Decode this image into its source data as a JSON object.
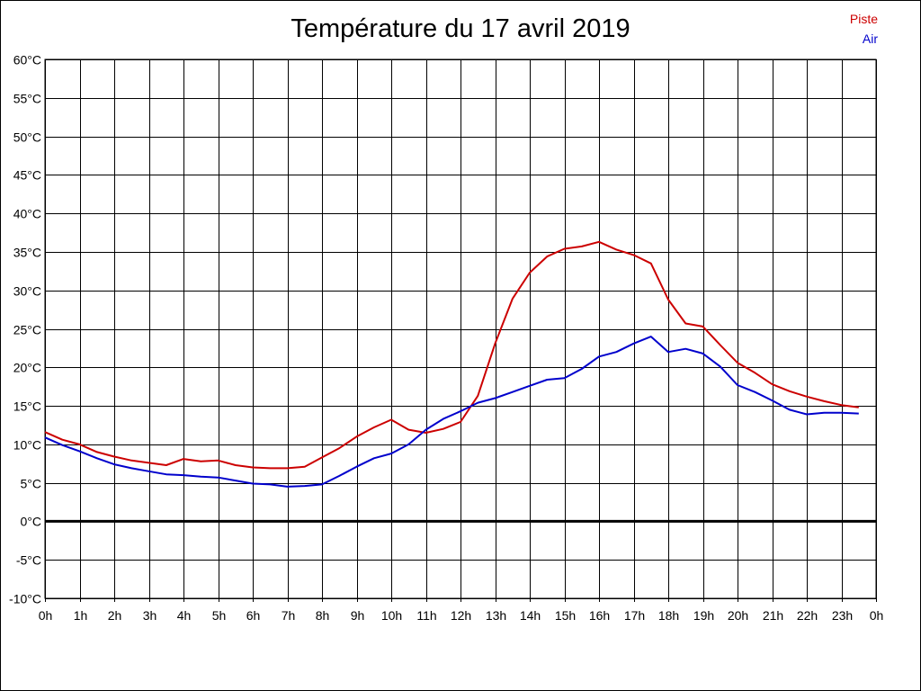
{
  "chart_data": {
    "type": "line",
    "title": "Température du 17 avril 2019",
    "xlabel": "",
    "ylabel": "",
    "ylim": [
      -10,
      60
    ],
    "xlim": [
      0,
      24
    ],
    "grid": true,
    "legend_position": "top-right",
    "x_tick_labels": [
      "0h",
      "1h",
      "2h",
      "3h",
      "4h",
      "5h",
      "6h",
      "7h",
      "8h",
      "9h",
      "10h",
      "11h",
      "12h",
      "13h",
      "14h",
      "15h",
      "16h",
      "17h",
      "18h",
      "19h",
      "20h",
      "21h",
      "22h",
      "23h",
      "0h"
    ],
    "y_tick_labels": [
      "-10°C",
      "-5°C",
      "0°C",
      "5°C",
      "10°C",
      "15°C",
      "20°C",
      "25°C",
      "30°C",
      "35°C",
      "40°C",
      "45°C",
      "50°C",
      "55°C",
      "60°C"
    ],
    "x": [
      0,
      0.5,
      1,
      1.5,
      2,
      2.5,
      3,
      3.5,
      4,
      4.5,
      5,
      5.5,
      6,
      6.5,
      7,
      7.5,
      8,
      8.5,
      9,
      9.5,
      10,
      10.5,
      11,
      11.5,
      12,
      12.5,
      13,
      13.5,
      14,
      14.5,
      15,
      15.5,
      16,
      16.5,
      17,
      17.5,
      18,
      18.5,
      19,
      19.5,
      20,
      20.5,
      21,
      21.5,
      22,
      22.5,
      23,
      23.5
    ],
    "series": [
      {
        "name": "Piste",
        "color": "#cc0000",
        "values": [
          11.6,
          10.6,
          10.0,
          9.0,
          8.4,
          7.9,
          7.6,
          7.3,
          8.1,
          7.8,
          7.9,
          7.3,
          7.0,
          6.9,
          6.9,
          7.1,
          8.3,
          9.5,
          11.0,
          12.2,
          13.2,
          11.9,
          11.5,
          12.0,
          12.9,
          16.3,
          23.1,
          28.9,
          32.3,
          34.4,
          35.4,
          35.7,
          36.3,
          35.3,
          34.6,
          33.5,
          28.8,
          25.7,
          25.3,
          22.9,
          20.6,
          19.3,
          17.8,
          16.9,
          16.2,
          15.6,
          15.1,
          14.8
        ]
      },
      {
        "name": "Air",
        "color": "#0000cc",
        "values": [
          10.9,
          9.9,
          9.1,
          8.2,
          7.4,
          6.9,
          6.5,
          6.1,
          6.0,
          5.8,
          5.7,
          5.3,
          4.9,
          4.8,
          4.5,
          4.6,
          4.8,
          5.9,
          7.1,
          8.2,
          8.8,
          10.0,
          11.9,
          13.3,
          14.3,
          15.4,
          16.0,
          16.8,
          17.6,
          18.4,
          18.6,
          19.8,
          21.4,
          22.0,
          23.1,
          24.0,
          22.0,
          22.4,
          21.8,
          20.1,
          17.7,
          16.8,
          15.7,
          14.5,
          13.9,
          14.1,
          14.1,
          14.0
        ]
      }
    ],
    "reference_line": {
      "y": 0,
      "color": "#000000"
    }
  }
}
